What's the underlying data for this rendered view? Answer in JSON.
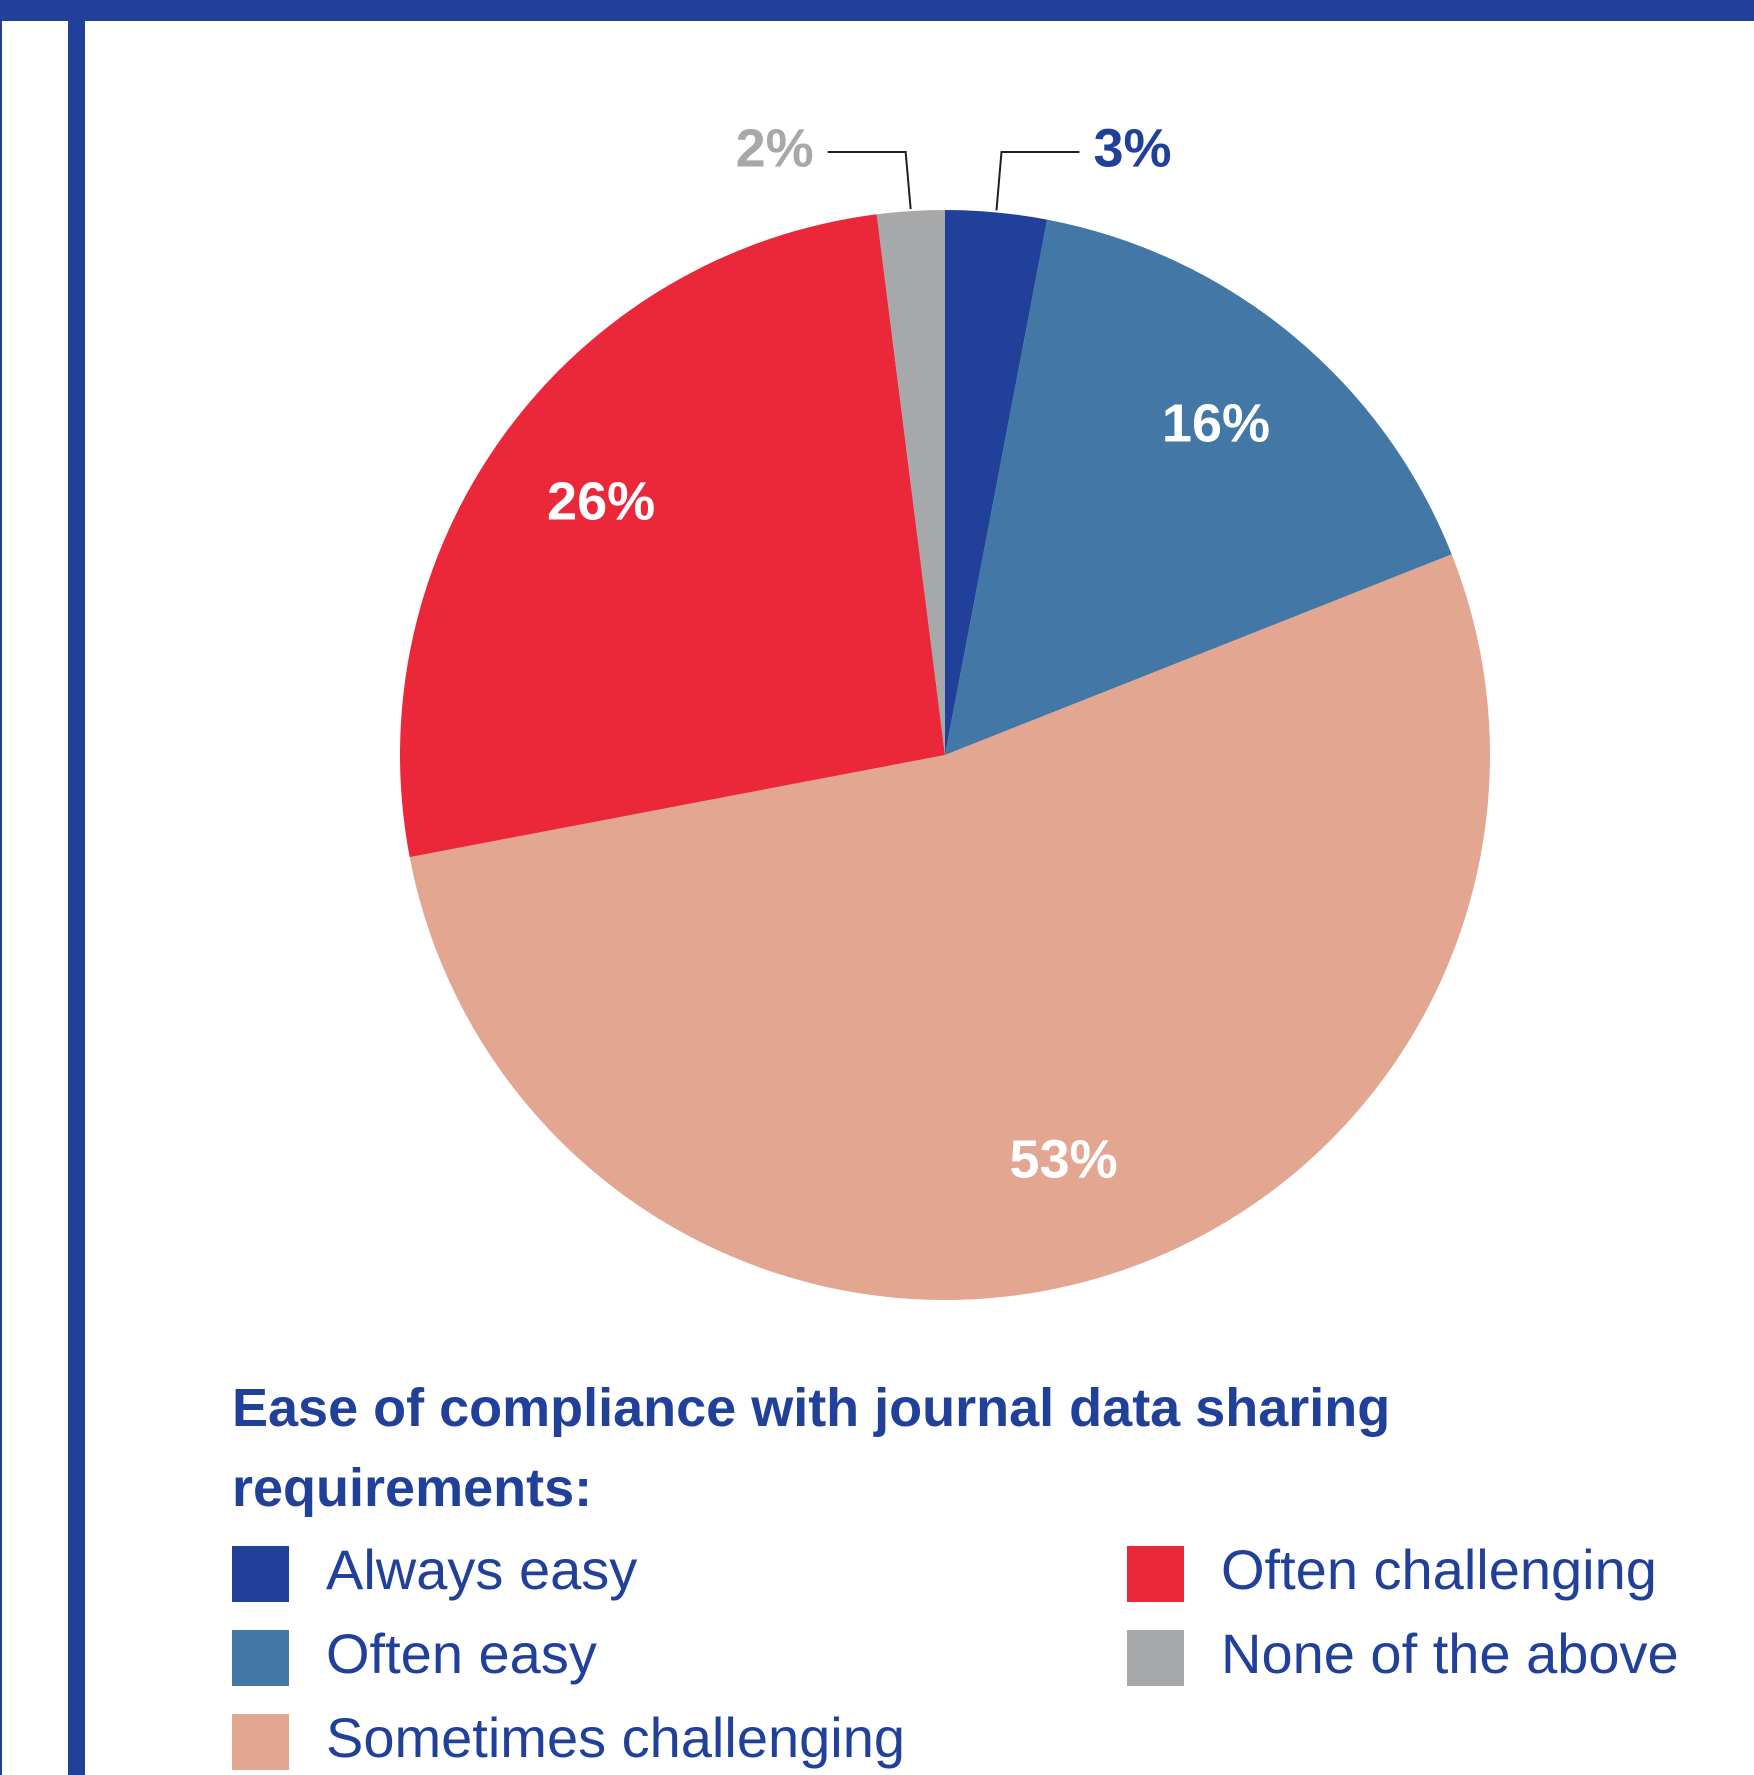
{
  "chart_data": {
    "type": "pie",
    "title": "Ease of compliance with journal data sharing requirements:",
    "categories": [
      "Always easy",
      "Often easy",
      "Sometimes challenging",
      "Often challenging",
      "None of the above"
    ],
    "values": [
      3,
      16,
      53,
      26,
      2
    ],
    "value_labels": [
      "3%",
      "16%",
      "53%",
      "26%",
      "2%"
    ],
    "colors": [
      "#21409a",
      "#4277a6",
      "#e3a690",
      "#ea2839",
      "#a6a8aa"
    ]
  }
}
